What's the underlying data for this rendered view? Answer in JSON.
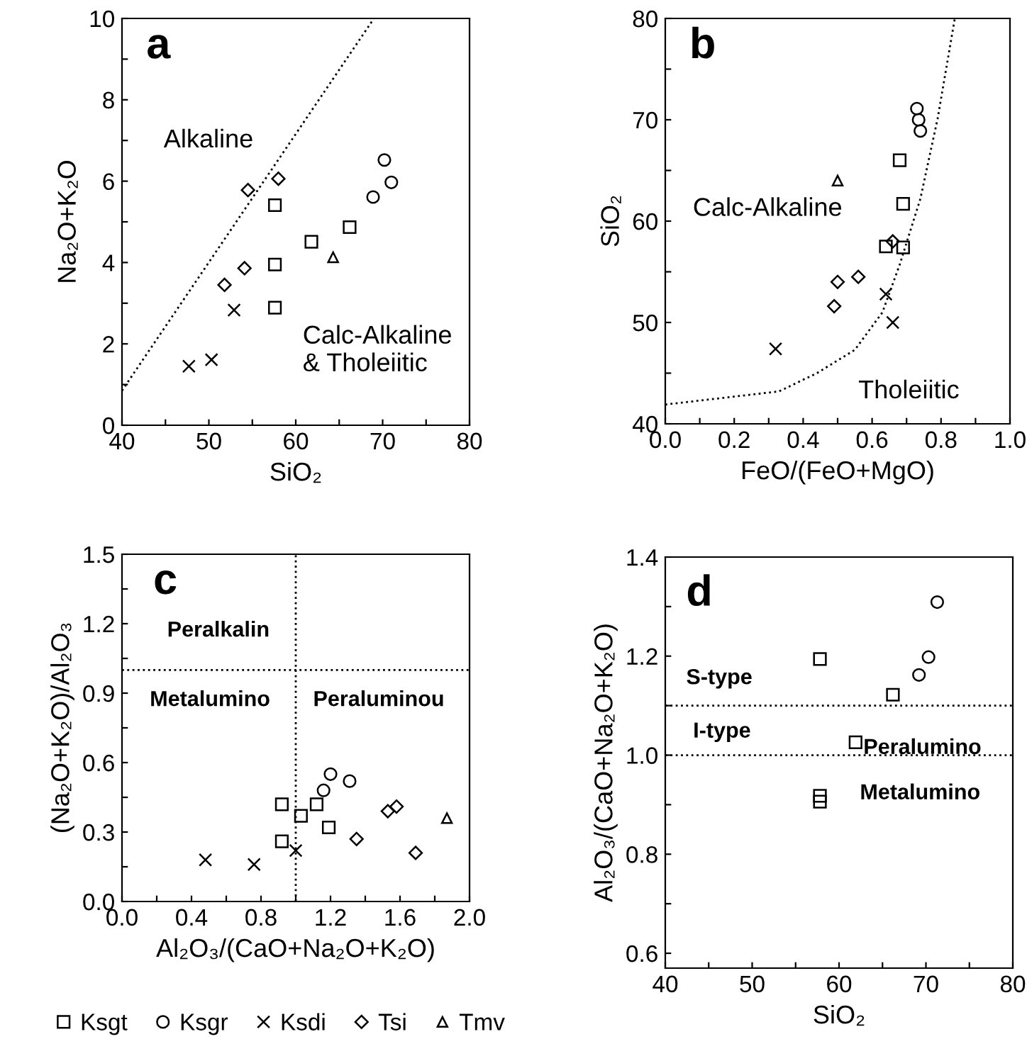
{
  "chart_data": [
    {
      "type": "scatter",
      "xlabel": "SiO₂",
      "ylabel": "Na₂O+K₂O",
      "xlim": [
        40,
        80
      ],
      "ylim": [
        0,
        10
      ],
      "xticks": [
        40,
        {
          "value": 45,
          "label": null
        },
        50,
        {
          "value": 55,
          "label": null
        },
        60,
        {
          "value": 65,
          "label": null
        },
        70,
        {
          "value": 75,
          "label": null
        },
        80
      ],
      "yticks": [
        0,
        {
          "value": 1,
          "label": null
        },
        2,
        {
          "value": 3,
          "label": null
        },
        4,
        {
          "value": 5,
          "label": null
        },
        6,
        {
          "value": 7,
          "label": null
        },
        8,
        {
          "value": 9,
          "label": null
        },
        10
      ],
      "grid": false,
      "legend": false,
      "annotations": [
        "a",
        "Alkaline",
        "Calc-Alkaline\n& Tholeiitic"
      ],
      "series": [
        {
          "color": "#000000",
          "marker": "square",
          "x": [
            57.6,
            57.6,
            57.6,
            61.8,
            66.2
          ],
          "values": [
            5.41,
            3.95,
            2.89,
            4.51,
            4.87
          ]
        },
        {
          "color": "#000000",
          "marker": "circle",
          "x": [
            70.2,
            71.0,
            68.9
          ],
          "values": [
            6.52,
            5.97,
            5.61
          ]
        },
        {
          "color": "#000000",
          "marker": "cross",
          "x": [
            47.7,
            50.3,
            52.9
          ],
          "values": [
            1.45,
            1.61,
            2.83
          ]
        },
        {
          "color": "#000000",
          "marker": "diamond",
          "x": [
            54.5,
            58.0,
            54.1,
            51.8
          ],
          "values": [
            5.78,
            6.06,
            3.86,
            3.45
          ]
        },
        {
          "color": "#000000",
          "marker": "triangle",
          "x": [
            64.3
          ],
          "values": [
            4.13
          ]
        },
        {
          "type": "line",
          "color": "#000000",
          "marker": "none",
          "line_style": "dotted",
          "x": [
            40,
            69
          ],
          "values": [
            0.85,
            10
          ]
        }
      ]
    },
    {
      "type": "scatter",
      "xlabel": "FeO/(FeO+MgO)",
      "ylabel": "SiO₂",
      "xlim": [
        0,
        1
      ],
      "ylim": [
        40,
        80
      ],
      "xticks": [
        {
          "value": 0,
          "label": "0.0"
        },
        {
          "value": 0.1,
          "label": null
        },
        0.2,
        {
          "value": 0.3,
          "label": null
        },
        0.4,
        {
          "value": 0.5,
          "label": null
        },
        0.6,
        {
          "value": 0.7,
          "label": null
        },
        0.8,
        {
          "value": 0.9,
          "label": null
        },
        {
          "value": 1,
          "label": "1.0"
        }
      ],
      "yticks": [
        40,
        {
          "value": 45,
          "label": null
        },
        50,
        {
          "value": 55,
          "label": null
        },
        60,
        {
          "value": 65,
          "label": null
        },
        70,
        {
          "value": 75,
          "label": null
        },
        80
      ],
      "grid": false,
      "legend": false,
      "annotations": [
        "b",
        "Calc-Alkaline",
        "Tholeiitic"
      ],
      "series": [
        {
          "color": "#000000",
          "marker": "square",
          "x": [
            0.68,
            0.69,
            0.64,
            0.69
          ],
          "values": [
            66.0,
            61.7,
            57.5,
            57.4
          ]
        },
        {
          "color": "#000000",
          "marker": "circle",
          "x": [
            0.73,
            0.735,
            0.74
          ],
          "values": [
            71.1,
            70.0,
            68.9
          ]
        },
        {
          "color": "#000000",
          "marker": "cross",
          "x": [
            0.32,
            0.64,
            0.66
          ],
          "values": [
            47.4,
            52.8,
            50.0
          ]
        },
        {
          "color": "#000000",
          "marker": "diamond",
          "x": [
            0.5,
            0.49,
            0.56,
            0.66
          ],
          "values": [
            54.0,
            51.6,
            54.5,
            58.0
          ]
        },
        {
          "color": "#000000",
          "marker": "triangle",
          "x": [
            0.5
          ],
          "values": [
            64.0
          ]
        },
        {
          "type": "line",
          "color": "#000000",
          "marker": "none",
          "line_style": "dotted",
          "x": [
            0,
            0.33,
            0.44,
            0.55,
            0.63,
            0.68,
            0.74,
            0.79,
            0.84
          ],
          "values": [
            41.9,
            43.2,
            45,
            47.3,
            51,
            55.7,
            62.2,
            70.1,
            80
          ]
        }
      ]
    },
    {
      "type": "scatter",
      "xlabel": "Al₂O₃/(CaO+Na₂O+K₂O)",
      "ylabel": "(Na₂O+K₂O)/Al₂O₃",
      "xlim": [
        0,
        2
      ],
      "ylim": [
        0,
        1.5
      ],
      "xticks": [
        {
          "value": 0,
          "label": "0.0"
        },
        {
          "value": 0.2,
          "label": null
        },
        0.4,
        {
          "value": 0.6,
          "label": null
        },
        0.8,
        {
          "value": 1.0,
          "label": null
        },
        1.2,
        {
          "value": 1.4,
          "label": null
        },
        1.6,
        {
          "value": 1.8,
          "label": null
        },
        {
          "value": 2,
          "label": "2.0"
        }
      ],
      "yticks": [
        {
          "value": 0,
          "label": "0.0"
        },
        {
          "value": 0.15,
          "label": null
        },
        0.3,
        {
          "value": 0.45,
          "label": null
        },
        0.6,
        {
          "value": 0.75,
          "label": null
        },
        0.9,
        {
          "value": 1.05,
          "label": null
        },
        1.2,
        {
          "value": 1.35,
          "label": null
        },
        1.5
      ],
      "grid": false,
      "legend": "bottom",
      "ref_lines": [
        {
          "axis": "x",
          "value": 1.0,
          "color": "#000000",
          "line_style": "dotted"
        },
        {
          "axis": "y",
          "value": 1.0,
          "color": "#000000",
          "line_style": "dotted"
        }
      ],
      "annotations": [
        "c",
        "Peralkalin",
        "Metalumino",
        "Peraluminou"
      ],
      "series": [
        {
          "name": "Ksgt",
          "color": "#000000",
          "marker": "square",
          "x": [
            0.92,
            0.92,
            1.03,
            1.12,
            1.19
          ],
          "values": [
            0.42,
            0.26,
            0.37,
            0.42,
            0.32
          ]
        },
        {
          "name": "Ksgr",
          "color": "#000000",
          "marker": "circle",
          "x": [
            1.2,
            1.16,
            1.31
          ],
          "values": [
            0.55,
            0.48,
            0.52
          ]
        },
        {
          "name": "Ksdi",
          "color": "#000000",
          "marker": "cross",
          "x": [
            0.48,
            0.76,
            1.0
          ],
          "values": [
            0.18,
            0.16,
            0.22
          ]
        },
        {
          "name": "Tsi",
          "color": "#000000",
          "marker": "diamond",
          "x": [
            1.35,
            1.53,
            1.58,
            1.69
          ],
          "values": [
            0.27,
            0.39,
            0.41,
            0.21
          ]
        },
        {
          "name": "Tmv",
          "color": "#000000",
          "marker": "triangle",
          "x": [
            1.87
          ],
          "values": [
            0.36
          ]
        }
      ]
    },
    {
      "type": "scatter",
      "xlabel": "SiO₂",
      "ylabel": "Al₂O₃/(CaO+Na₂O+K₂O)",
      "xlim": [
        40,
        80
      ],
      "ylim": [
        0.57,
        1.4
      ],
      "xticks": [
        40,
        {
          "value": 45,
          "label": null
        },
        50,
        {
          "value": 55,
          "label": null
        },
        60,
        {
          "value": 65,
          "label": null
        },
        70,
        {
          "value": 75,
          "label": null
        },
        80
      ],
      "yticks": [
        0.6,
        {
          "value": 0.7,
          "label": null
        },
        0.8,
        {
          "value": 0.9,
          "label": null
        },
        {
          "value": 1.0,
          "label": "1.0"
        },
        {
          "value": 1.1,
          "label": null
        },
        1.2,
        {
          "value": 1.3,
          "label": null
        },
        1.4
      ],
      "grid": false,
      "legend": false,
      "ref_lines": [
        {
          "axis": "y",
          "value": 1.1,
          "color": "#000000",
          "line_style": "dotted"
        },
        {
          "axis": "y",
          "value": 1.0,
          "color": "#000000",
          "line_style": "dotted"
        }
      ],
      "annotations": [
        "d",
        "S-type",
        "I-type",
        "Peralumino",
        "Metalumino"
      ],
      "series": [
        {
          "color": "#000000",
          "marker": "square",
          "x": [
            57.8,
            66.2,
            61.9,
            57.8,
            57.8
          ],
          "values": [
            1.194,
            1.122,
            1.026,
            0.918,
            0.906
          ]
        },
        {
          "color": "#000000",
          "marker": "circle",
          "x": [
            71.3,
            70.3,
            69.2
          ],
          "values": [
            1.309,
            1.198,
            1.162
          ]
        }
      ]
    }
  ]
}
